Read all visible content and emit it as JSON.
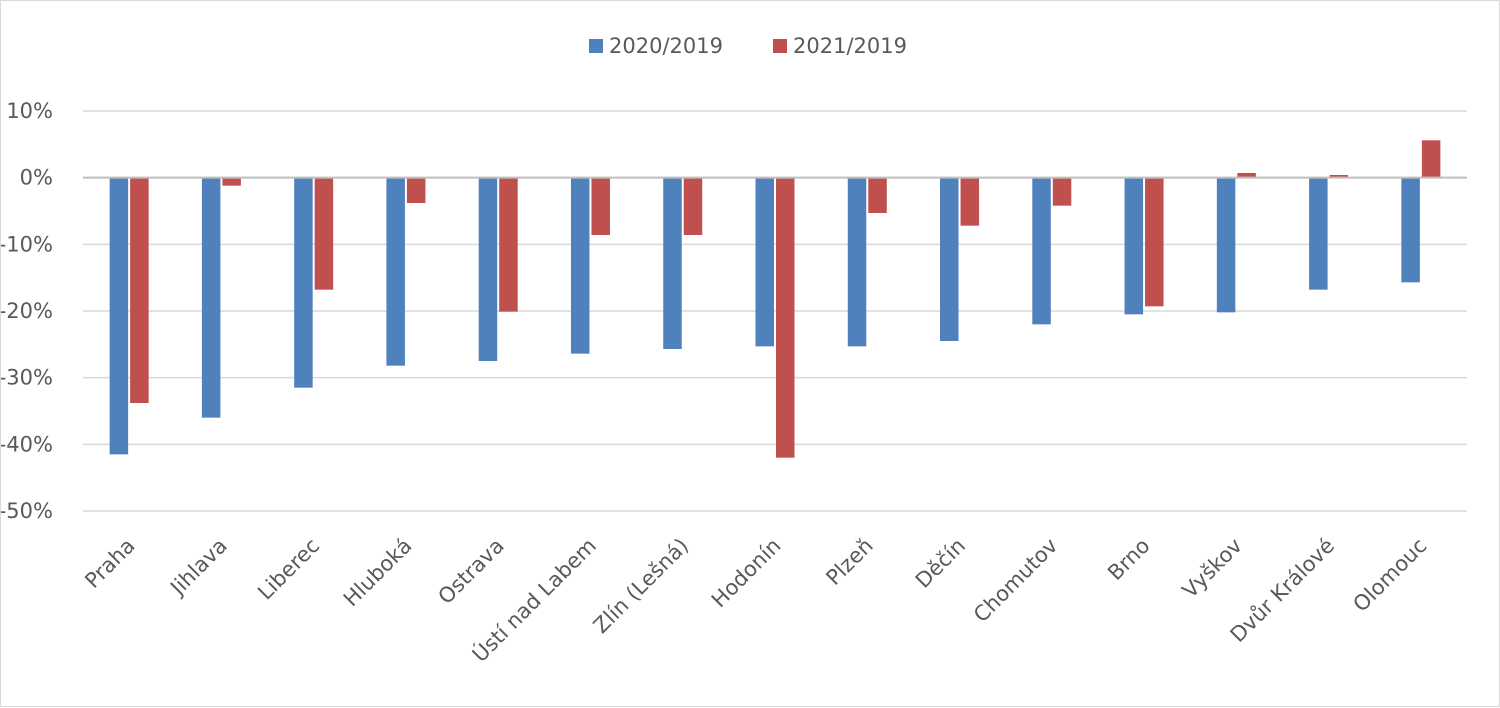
{
  "chart_data": {
    "type": "bar",
    "categories": [
      "Praha",
      "Jihlava",
      "Liberec",
      "Hluboká",
      "Ostrava",
      "Ústí nad Labem",
      "Zlín (Lešná)",
      "Hodonín",
      "Plzeň",
      "Děčín",
      "Chomutov",
      "Brno",
      "Vyškov",
      "Dvůr Králové",
      "Olomouc"
    ],
    "series": [
      {
        "name": "2020/2019",
        "color": "#4f81bd",
        "values": [
          -41.5,
          -36.0,
          -31.5,
          -28.2,
          -27.5,
          -26.4,
          -25.7,
          -25.3,
          -25.3,
          -24.5,
          -22.0,
          -20.5,
          -20.2,
          -16.8,
          -15.7
        ]
      },
      {
        "name": "2021/2019",
        "color": "#c0504d",
        "values": [
          -33.8,
          -1.2,
          -16.8,
          -3.8,
          -20.1,
          -8.6,
          -8.6,
          -42.0,
          -5.3,
          -7.2,
          -4.2,
          -19.3,
          0.7,
          0.4,
          5.6
        ]
      }
    ],
    "ylim": [
      -50,
      10
    ],
    "yticks": [
      10,
      0,
      -10,
      -20,
      -30,
      -40,
      -50
    ],
    "ytick_labels": [
      "10%",
      "0%",
      "-10%",
      "-20%",
      "-30%",
      "-40%",
      "-50%"
    ],
    "grid": true,
    "legend": "top-center",
    "gridline_color": "#d9d9d9",
    "axis_color": "#bfbfbf"
  }
}
